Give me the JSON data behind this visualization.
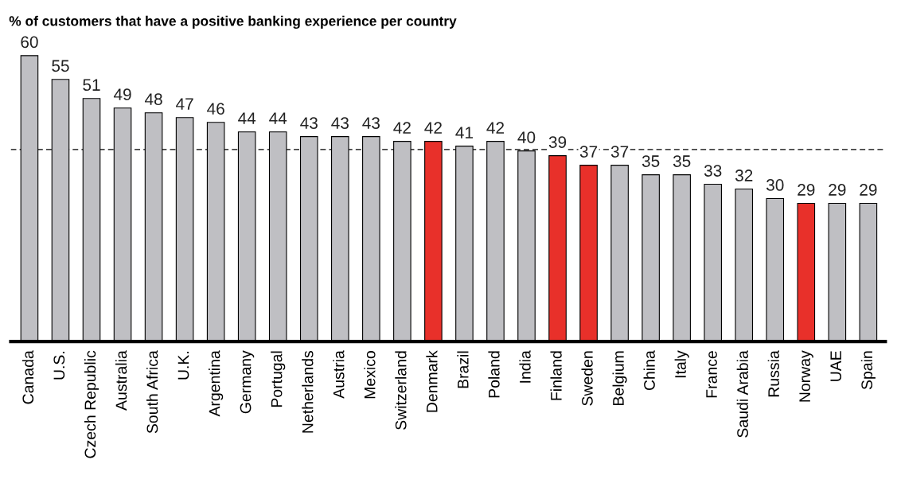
{
  "chart_data": {
    "type": "bar",
    "title": "% of customers that have a positive banking experience per country",
    "categories": [
      "Canada",
      "U.S.",
      "Czech Republic",
      "Australia",
      "South Africa",
      "U.K.",
      "Argentina",
      "Germany",
      "Portugal",
      "Netherlands",
      "Austria",
      "Mexico",
      "Switzerland",
      "Denmark",
      "Brazil",
      "Poland",
      "India",
      "Finland",
      "Sweden",
      "Belgium",
      "China",
      "Italy",
      "France",
      "Saudi Arabia",
      "Russia",
      "Norway",
      "UAE",
      "Spain"
    ],
    "values": [
      60,
      55,
      51,
      49,
      48,
      47,
      46,
      44,
      44,
      43,
      43,
      43,
      42,
      42,
      41,
      42,
      40,
      39,
      37,
      37,
      35,
      35,
      33,
      32,
      30,
      29,
      29,
      29
    ],
    "colors": [
      "#bfbfc3",
      "#bfbfc3",
      "#bfbfc3",
      "#bfbfc3",
      "#bfbfc3",
      "#bfbfc3",
      "#bfbfc3",
      "#bfbfc3",
      "#bfbfc3",
      "#bfbfc3",
      "#bfbfc3",
      "#bfbfc3",
      "#bfbfc3",
      "#e8302a",
      "#bfbfc3",
      "#bfbfc3",
      "#bfbfc3",
      "#e8302a",
      "#e8302a",
      "#bfbfc3",
      "#bfbfc3",
      "#bfbfc3",
      "#bfbfc3",
      "#bfbfc3",
      "#bfbfc3",
      "#e8302a",
      "#bfbfc3",
      "#bfbfc3"
    ],
    "ref_lines": [
      {
        "axis": "y",
        "value": 40.3,
        "color": "#000000",
        "line_style": "dashed"
      }
    ],
    "data_labels": true,
    "tick_labels": "x",
    "grid": false,
    "legend": false
  }
}
